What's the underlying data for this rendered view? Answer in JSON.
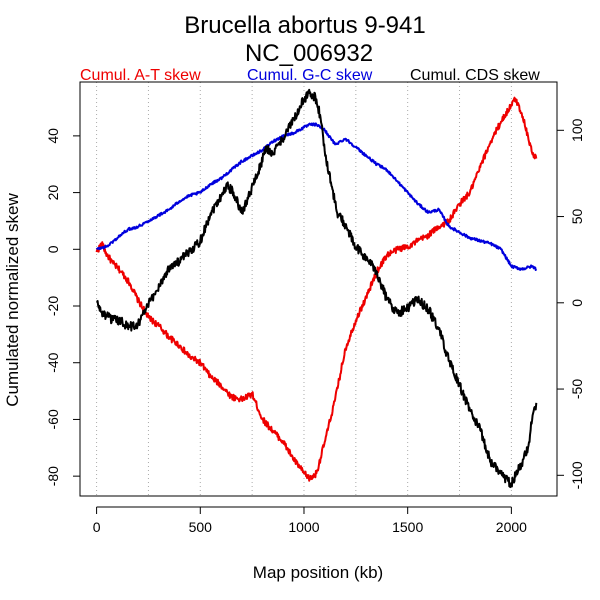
{
  "chart_data": {
    "type": "line",
    "title": "Brucella abortus 9-941",
    "subtitle": "NC_006932",
    "xlabel": "Map position (kb)",
    "ylabel": "Cumulated normalized skew",
    "xlim": [
      -80,
      2220
    ],
    "ylim_left": [
      -87,
      59
    ],
    "ylim_right": [
      -112,
      128
    ],
    "x_ticks": [
      0,
      500,
      1000,
      1500,
      2000
    ],
    "y_ticks_left": [
      -80,
      -60,
      -40,
      -20,
      0,
      20,
      40
    ],
    "y_ticks_right": [
      -100,
      -50,
      0,
      50,
      100
    ],
    "gridlines_x": [
      0,
      250,
      500,
      750,
      1000,
      1250,
      1500,
      1750,
      2000
    ],
    "grid": "vertical dotted",
    "legend": [
      {
        "label": "Cumul. A-T skew",
        "color": "#ee0000"
      },
      {
        "label": "Cumul. G-C skew",
        "color": "#0000dd"
      },
      {
        "label": "Cumul. CDS skew",
        "color": "#000000"
      }
    ],
    "series": [
      {
        "name": "Cumul. A-T skew",
        "axis": "left",
        "color": "#ee0000",
        "x": [
          0,
          25,
          50,
          80,
          120,
          160,
          200,
          250,
          300,
          350,
          400,
          450,
          500,
          550,
          600,
          650,
          700,
          750,
          800,
          850,
          900,
          950,
          1000,
          1030,
          1060,
          1100,
          1150,
          1200,
          1250,
          1300,
          1350,
          1400,
          1450,
          1500,
          1550,
          1600,
          1650,
          1700,
          1750,
          1800,
          1850,
          1900,
          1950,
          2000,
          2020,
          2050,
          2080,
          2100,
          2120
        ],
        "y": [
          -1,
          2,
          -2,
          -5,
          -8,
          -12,
          -18,
          -24,
          -27,
          -31,
          -34,
          -38,
          -40,
          -45,
          -48,
          -52,
          -53,
          -51,
          -60,
          -64,
          -68,
          -74,
          -79,
          -81,
          -79,
          -68,
          -53,
          -35,
          -25,
          -17,
          -8,
          -2,
          0,
          1,
          3,
          5,
          8,
          10,
          16,
          20,
          29,
          38,
          45,
          51,
          53,
          48,
          40,
          34,
          32
        ]
      },
      {
        "name": "Cumul. G-C skew",
        "axis": "left",
        "color": "#0000dd",
        "x": [
          0,
          50,
          100,
          150,
          200,
          250,
          300,
          350,
          400,
          450,
          500,
          550,
          600,
          650,
          700,
          750,
          800,
          850,
          900,
          950,
          1000,
          1030,
          1060,
          1100,
          1150,
          1200,
          1250,
          1300,
          1350,
          1400,
          1450,
          1500,
          1550,
          1600,
          1650,
          1700,
          1750,
          1800,
          1850,
          1900,
          1950,
          2000,
          2050,
          2100,
          2120
        ],
        "y": [
          0,
          1,
          4,
          7,
          8,
          10,
          12,
          14,
          17,
          19,
          20,
          23,
          25,
          28,
          31,
          33,
          35,
          38,
          40,
          41,
          43,
          44,
          44,
          42,
          37,
          39,
          36,
          33,
          30,
          28,
          24,
          20,
          16,
          13,
          14,
          8,
          6,
          4,
          3,
          2,
          0,
          -6,
          -7,
          -6,
          -7
        ]
      },
      {
        "name": "Cumul. CDS skew",
        "axis": "right",
        "color": "#000000",
        "x": [
          0,
          20,
          50,
          80,
          120,
          160,
          200,
          240,
          280,
          320,
          360,
          400,
          450,
          500,
          550,
          600,
          630,
          660,
          700,
          740,
          780,
          820,
          850,
          880,
          920,
          960,
          1000,
          1030,
          1060,
          1080,
          1100,
          1130,
          1160,
          1200,
          1250,
          1300,
          1350,
          1400,
          1450,
          1500,
          1550,
          1600,
          1650,
          1700,
          1750,
          1800,
          1850,
          1900,
          1950,
          2000,
          2050,
          2080,
          2100,
          2120
        ],
        "y": [
          1,
          -5,
          -8,
          -10,
          -11,
          -14,
          -12,
          -3,
          5,
          14,
          22,
          24,
          30,
          36,
          52,
          62,
          68,
          64,
          52,
          64,
          76,
          90,
          86,
          92,
          100,
          108,
          118,
          122,
          118,
          107,
          88,
          70,
          52,
          45,
          32,
          26,
          18,
          2,
          -6,
          -3,
          2,
          -4,
          -15,
          -34,
          -48,
          -62,
          -74,
          -92,
          -99,
          -105,
          -93,
          -84,
          -68,
          -58
        ]
      }
    ]
  }
}
